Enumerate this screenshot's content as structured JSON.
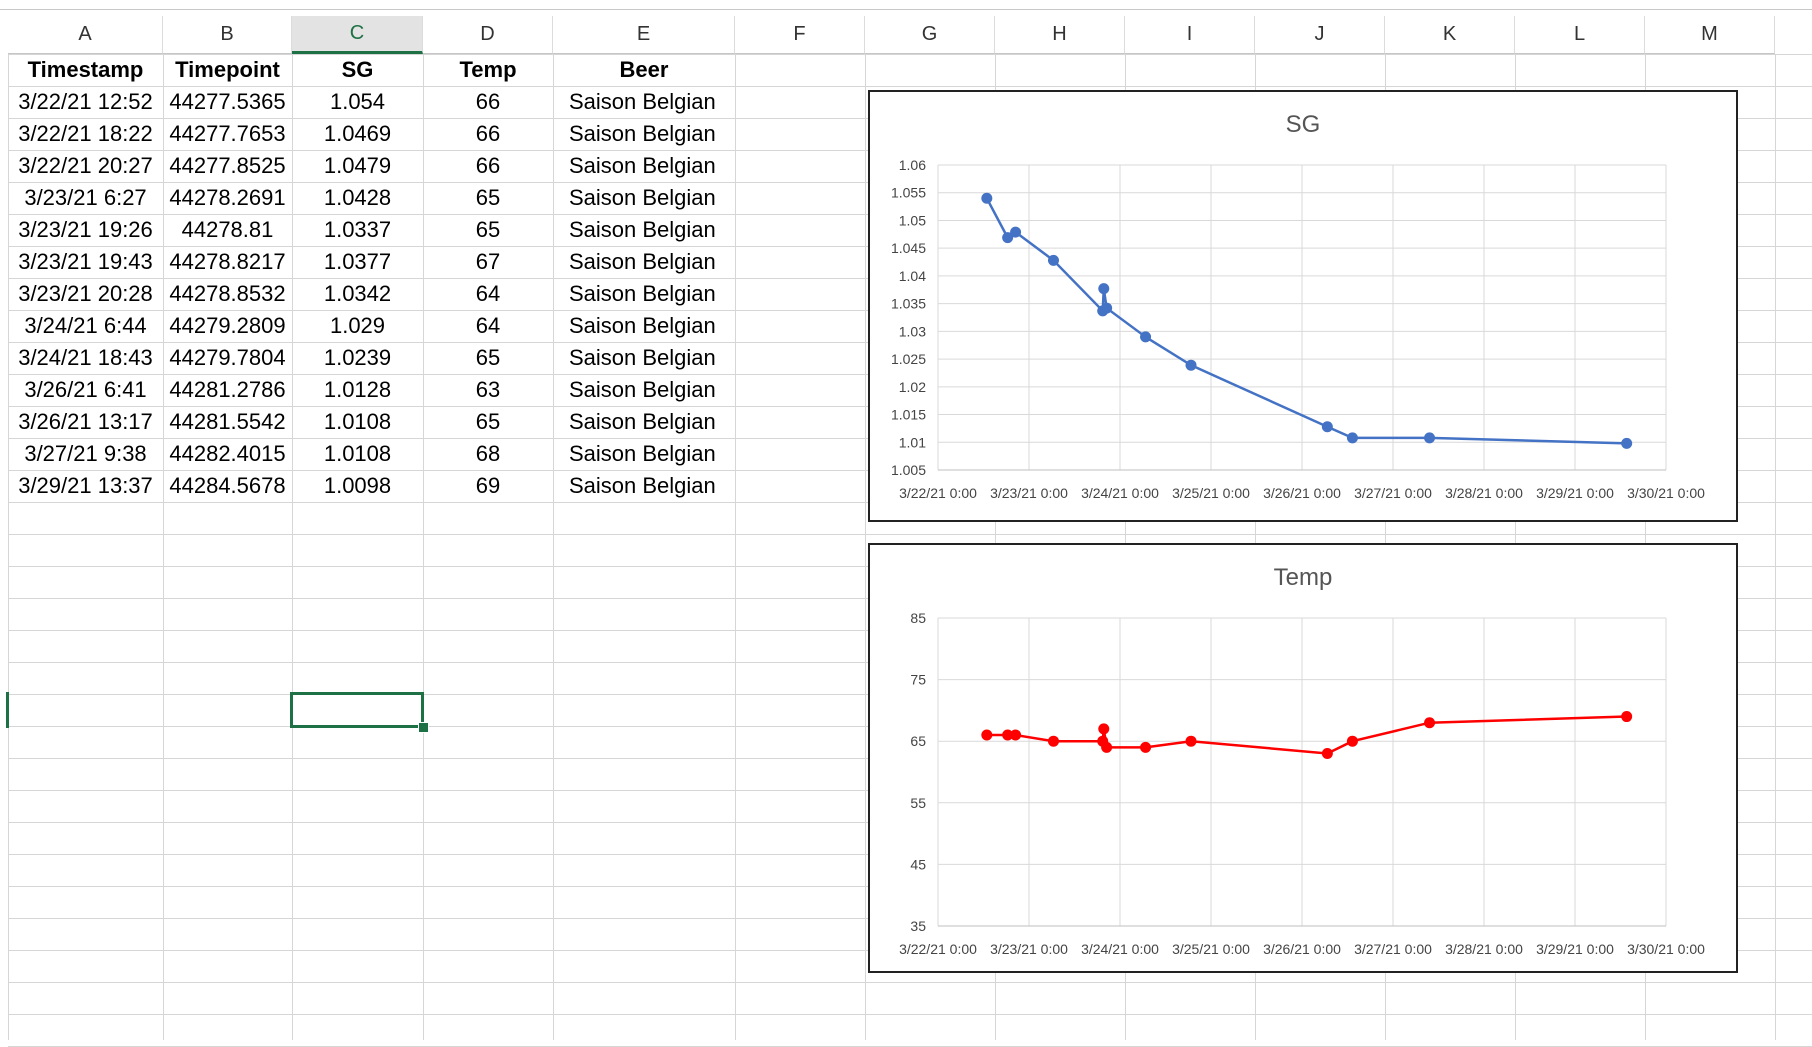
{
  "columns": [
    "A",
    "B",
    "C",
    "D",
    "E",
    "F",
    "G",
    "H",
    "I",
    "J",
    "K",
    "L",
    "M"
  ],
  "selected_column": "C",
  "table": {
    "headers": [
      "Timestamp",
      "Timepoint",
      "SG",
      "Temp",
      "Beer"
    ],
    "rows": [
      [
        "3/22/21 12:52",
        "44277.5365",
        "1.054",
        "66",
        "Saison Belgian"
      ],
      [
        "3/22/21 18:22",
        "44277.7653",
        "1.0469",
        "66",
        "Saison Belgian"
      ],
      [
        "3/22/21 20:27",
        "44277.8525",
        "1.0479",
        "66",
        "Saison Belgian"
      ],
      [
        "3/23/21 6:27",
        "44278.2691",
        "1.0428",
        "65",
        "Saison Belgian"
      ],
      [
        "3/23/21 19:26",
        "44278.81",
        "1.0337",
        "65",
        "Saison Belgian"
      ],
      [
        "3/23/21 19:43",
        "44278.8217",
        "1.0377",
        "67",
        "Saison Belgian"
      ],
      [
        "3/23/21 20:28",
        "44278.8532",
        "1.0342",
        "64",
        "Saison Belgian"
      ],
      [
        "3/24/21 6:44",
        "44279.2809",
        "1.029",
        "64",
        "Saison Belgian"
      ],
      [
        "3/24/21 18:43",
        "44279.7804",
        "1.0239",
        "65",
        "Saison Belgian"
      ],
      [
        "3/26/21 6:41",
        "44281.2786",
        "1.0128",
        "63",
        "Saison Belgian"
      ],
      [
        "3/26/21 13:17",
        "44281.5542",
        "1.0108",
        "65",
        "Saison Belgian"
      ],
      [
        "3/27/21 9:38",
        "44282.4015",
        "1.0108",
        "68",
        "Saison Belgian"
      ],
      [
        "3/29/21 13:37",
        "44284.5678",
        "1.0098",
        "69",
        "Saison Belgian"
      ]
    ]
  },
  "chart_data": [
    {
      "type": "scatter",
      "title": "SG",
      "x": [
        44277.5365,
        44277.7653,
        44277.8525,
        44278.2691,
        44278.81,
        44278.8217,
        44278.8532,
        44279.2809,
        44279.7804,
        44281.2786,
        44281.5542,
        44282.4015,
        44284.5678
      ],
      "y": [
        1.054,
        1.0469,
        1.0479,
        1.0428,
        1.0337,
        1.0377,
        1.0342,
        1.029,
        1.0239,
        1.0128,
        1.0108,
        1.0108,
        1.0098
      ],
      "xlim": [
        44277,
        44285
      ],
      "ylim": [
        1.005,
        1.06
      ],
      "ytick_step": 0.005,
      "x_tick_labels": [
        "3/22/21 0:00",
        "3/23/21 0:00",
        "3/24/21 0:00",
        "3/25/21 0:00",
        "3/26/21 0:00",
        "3/27/21 0:00",
        "3/28/21 0:00",
        "3/29/21 0:00",
        "3/30/21 0:00"
      ],
      "y_tick_labels": [
        "1.005",
        "1.01",
        "1.015",
        "1.02",
        "1.025",
        "1.03",
        "1.035",
        "1.04",
        "1.045",
        "1.05",
        "1.055",
        "1.06"
      ],
      "color": "#4472C4",
      "grid": true
    },
    {
      "type": "scatter",
      "title": "Temp",
      "x": [
        44277.5365,
        44277.7653,
        44277.8525,
        44278.2691,
        44278.81,
        44278.8217,
        44278.8532,
        44279.2809,
        44279.7804,
        44281.2786,
        44281.5542,
        44282.4015,
        44284.5678
      ],
      "y": [
        66,
        66,
        66,
        65,
        65,
        67,
        64,
        64,
        65,
        63,
        65,
        68,
        69
      ],
      "xlim": [
        44277,
        44285
      ],
      "ylim": [
        35,
        85
      ],
      "ytick_step": 10,
      "x_tick_labels": [
        "3/22/21 0:00",
        "3/23/21 0:00",
        "3/24/21 0:00",
        "3/25/21 0:00",
        "3/26/21 0:00",
        "3/27/21 0:00",
        "3/28/21 0:00",
        "3/29/21 0:00",
        "3/30/21 0:00"
      ],
      "y_tick_labels": [
        "35",
        "45",
        "55",
        "65",
        "75",
        "85"
      ],
      "color": "#FF0000",
      "grid": true
    }
  ]
}
